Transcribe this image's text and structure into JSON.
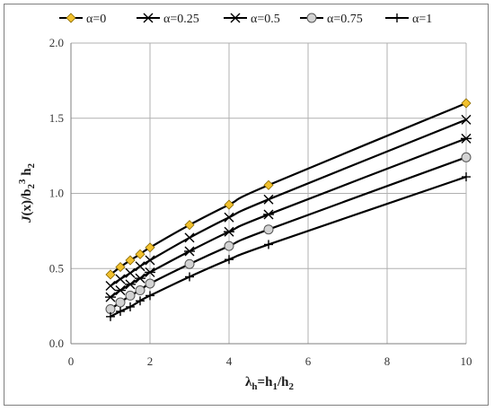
{
  "chart_data": {
    "type": "line",
    "xlabel": {
      "main": "λ",
      "sub1": "h",
      "mid": "=h",
      "sub2": "1",
      "mid2": "/h",
      "sub3": "2"
    },
    "ylabel": {
      "j": "J",
      "rest": "(x)/b",
      "sub1": "2",
      "sup": "3",
      "mid": " h",
      "sub2": "2"
    },
    "xlim": [
      0,
      10
    ],
    "ylim": [
      0,
      2
    ],
    "xticks": [
      "0",
      "2",
      "4",
      "6",
      "8",
      "10"
    ],
    "yticks": [
      "0.0",
      "0.5",
      "1.0",
      "1.5",
      "2.0"
    ],
    "grid": true,
    "legend_position": "top",
    "x": [
      1,
      1.25,
      1.5,
      1.75,
      2,
      3,
      4,
      5,
      10
    ],
    "series": [
      {
        "name": "α=0",
        "marker": "diamond",
        "values": [
          0.46,
          0.51,
          0.555,
          0.595,
          0.64,
          0.79,
          0.925,
          1.055,
          1.6
        ]
      },
      {
        "name": "α=0.25",
        "marker": "x",
        "values": [
          0.385,
          0.43,
          0.47,
          0.515,
          0.555,
          0.705,
          0.84,
          0.96,
          1.49
        ]
      },
      {
        "name": "α=0.5",
        "marker": "star",
        "values": [
          0.31,
          0.355,
          0.395,
          0.435,
          0.475,
          0.615,
          0.745,
          0.86,
          1.365
        ]
      },
      {
        "name": "α=0.75",
        "marker": "circle",
        "values": [
          0.23,
          0.275,
          0.32,
          0.355,
          0.4,
          0.53,
          0.65,
          0.76,
          1.24
        ]
      },
      {
        "name": "α=1",
        "marker": "plus",
        "values": [
          0.18,
          0.215,
          0.245,
          0.285,
          0.32,
          0.445,
          0.56,
          0.66,
          1.11
        ]
      }
    ],
    "colors": {
      "line": "#000000",
      "grid": "#b0b0b0",
      "diamond_fill": "#f2c12e",
      "circle_fill": "#d3d3d3"
    }
  }
}
